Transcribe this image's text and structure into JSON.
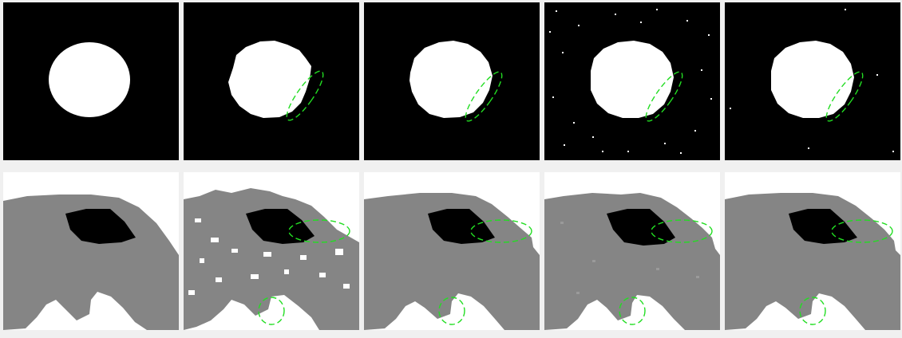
{
  "figure": {
    "columns": 5,
    "rows": [
      {
        "name": "circle-masks",
        "panels": [
          {
            "id": "c1",
            "blob": "smooth",
            "noise": "none",
            "annotation": "none"
          },
          {
            "id": "c2",
            "blob": "rough",
            "noise": "none",
            "annotation": "ellipse"
          },
          {
            "id": "c3",
            "blob": "slight",
            "noise": "none",
            "annotation": "ellipse"
          },
          {
            "id": "c4",
            "blob": "rough",
            "noise": "heavy",
            "annotation": "ellipse"
          },
          {
            "id": "c5",
            "blob": "rough",
            "noise": "light",
            "annotation": "ellipse"
          }
        ]
      },
      {
        "name": "tissue-masks",
        "panels": [
          {
            "id": "t1",
            "style": "smooth",
            "noise": "none",
            "annotation": "none"
          },
          {
            "id": "t2",
            "style": "fragmented",
            "noise": "heavy",
            "annotation": "ellipses"
          },
          {
            "id": "t3",
            "style": "smooth",
            "noise": "none",
            "annotation": "ellipses"
          },
          {
            "id": "t4",
            "style": "rough",
            "noise": "light",
            "annotation": "ellipses"
          },
          {
            "id": "t5",
            "style": "slight",
            "noise": "none",
            "annotation": "ellipses"
          }
        ]
      }
    ],
    "colors": {
      "background": "#000000",
      "foreground": "#ffffff",
      "tissue": "#858585",
      "annotation": "#22dd22",
      "separator": "#f0f0f0"
    }
  }
}
